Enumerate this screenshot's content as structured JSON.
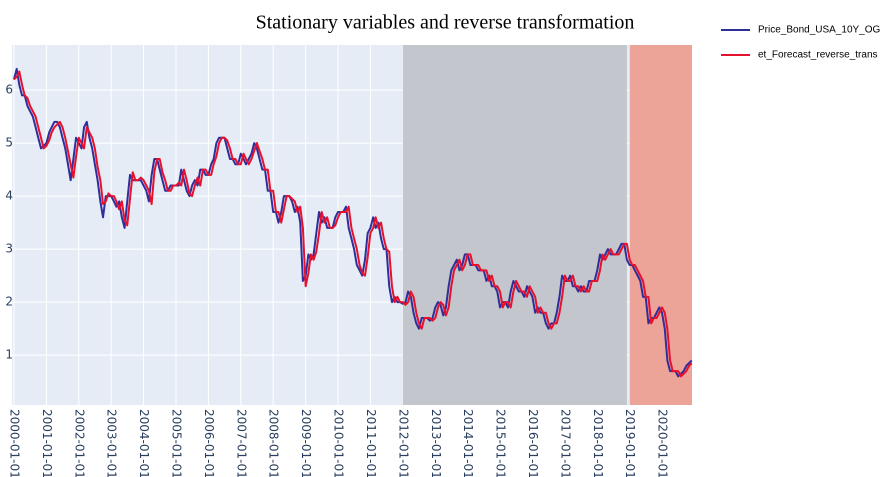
{
  "chart_data": {
    "type": "line",
    "title": "Stationary variables and reverse transformation",
    "xlim": [
      "1999-12-10",
      "2020-12-04"
    ],
    "ylim": [
      0.06,
      6.85
    ],
    "yticks": [
      1,
      2,
      3,
      4,
      5,
      6
    ],
    "xticks": [
      "2000-01-01",
      "2001-01-01",
      "2002-01-01",
      "2003-01-01",
      "2004-01-01",
      "2005-01-01",
      "2006-01-01",
      "2007-01-01",
      "2008-01-01",
      "2009-01-01",
      "2010-01-01",
      "2011-01-01",
      "2012-01-01",
      "2013-01-01",
      "2014-01-01",
      "2015-01-01",
      "2016-01-01",
      "2017-01-01",
      "2018-01-01",
      "2019-01-01",
      "2020-01-01"
    ],
    "grid": true,
    "background": "#e5ecf6",
    "shaded_regions": [
      {
        "start": "2012-01-01",
        "end": "2018-12-01",
        "color": "#c3c6cc"
      },
      {
        "start": "2019-01-01",
        "end": "2020-12-04",
        "color": "#eca398"
      }
    ],
    "x": [
      "2000-01-01",
      "2000-02-01",
      "2000-03-01",
      "2000-04-01",
      "2000-05-01",
      "2000-06-01",
      "2000-07-01",
      "2000-08-01",
      "2000-09-01",
      "2000-10-01",
      "2000-11-01",
      "2000-12-01",
      "2001-01-01",
      "2001-02-01",
      "2001-03-01",
      "2001-04-01",
      "2001-05-01",
      "2001-06-01",
      "2001-07-01",
      "2001-08-01",
      "2001-09-01",
      "2001-10-01",
      "2001-11-01",
      "2001-12-01",
      "2002-01-01",
      "2002-02-01",
      "2002-03-01",
      "2002-04-01",
      "2002-05-01",
      "2002-06-01",
      "2002-07-01",
      "2002-08-01",
      "2002-09-01",
      "2002-10-01",
      "2002-11-01",
      "2002-12-01",
      "2003-01-01",
      "2003-02-01",
      "2003-03-01",
      "2003-04-01",
      "2003-05-01",
      "2003-06-01",
      "2003-07-01",
      "2003-08-01",
      "2003-09-01",
      "2003-10-01",
      "2003-11-01",
      "2003-12-01",
      "2004-01-01",
      "2004-02-01",
      "2004-03-01",
      "2004-04-01",
      "2004-05-01",
      "2004-06-01",
      "2004-07-01",
      "2004-08-01",
      "2004-09-01",
      "2004-10-01",
      "2004-11-01",
      "2004-12-01",
      "2005-01-01",
      "2005-02-01",
      "2005-03-01",
      "2005-04-01",
      "2005-05-01",
      "2005-06-01",
      "2005-07-01",
      "2005-08-01",
      "2005-09-01",
      "2005-10-01",
      "2005-11-01",
      "2005-12-01",
      "2006-01-01",
      "2006-02-01",
      "2006-03-01",
      "2006-04-01",
      "2006-05-01",
      "2006-06-01",
      "2006-07-01",
      "2006-08-01",
      "2006-09-01",
      "2006-10-01",
      "2006-11-01",
      "2006-12-01",
      "2007-01-01",
      "2007-02-01",
      "2007-03-01",
      "2007-04-01",
      "2007-05-01",
      "2007-06-01",
      "2007-07-01",
      "2007-08-01",
      "2007-09-01",
      "2007-10-01",
      "2007-11-01",
      "2007-12-01",
      "2008-01-01",
      "2008-02-01",
      "2008-03-01",
      "2008-04-01",
      "2008-05-01",
      "2008-06-01",
      "2008-07-01",
      "2008-08-01",
      "2008-09-01",
      "2008-10-01",
      "2008-11-01",
      "2008-12-01",
      "2009-01-01",
      "2009-02-01",
      "2009-03-01",
      "2009-04-01",
      "2009-05-01",
      "2009-06-01",
      "2009-07-01",
      "2009-08-01",
      "2009-09-01",
      "2009-10-01",
      "2009-11-01",
      "2009-12-01",
      "2010-01-01",
      "2010-02-01",
      "2010-03-01",
      "2010-04-01",
      "2010-05-01",
      "2010-06-01",
      "2010-07-01",
      "2010-08-01",
      "2010-09-01",
      "2010-10-01",
      "2010-11-01",
      "2010-12-01",
      "2011-01-01",
      "2011-02-01",
      "2011-03-01",
      "2011-04-01",
      "2011-05-01",
      "2011-06-01",
      "2011-07-01",
      "2011-08-01",
      "2011-09-01",
      "2011-10-01",
      "2011-11-01",
      "2011-12-01",
      "2012-01-01",
      "2012-02-01",
      "2012-03-01",
      "2012-04-01",
      "2012-05-01",
      "2012-06-01",
      "2012-07-01",
      "2012-08-01",
      "2012-09-01",
      "2012-10-01",
      "2012-11-01",
      "2012-12-01",
      "2013-01-01",
      "2013-02-01",
      "2013-03-01",
      "2013-04-01",
      "2013-05-01",
      "2013-06-01",
      "2013-07-01",
      "2013-08-01",
      "2013-09-01",
      "2013-10-01",
      "2013-11-01",
      "2013-12-01",
      "2014-01-01",
      "2014-02-01",
      "2014-03-01",
      "2014-04-01",
      "2014-05-01",
      "2014-06-01",
      "2014-07-01",
      "2014-08-01",
      "2014-09-01",
      "2014-10-01",
      "2014-11-01",
      "2014-12-01",
      "2015-01-01",
      "2015-02-01",
      "2015-03-01",
      "2015-04-01",
      "2015-05-01",
      "2015-06-01",
      "2015-07-01",
      "2015-08-01",
      "2015-09-01",
      "2015-10-01",
      "2015-11-01",
      "2015-12-01",
      "2016-01-01",
      "2016-02-01",
      "2016-03-01",
      "2016-04-01",
      "2016-05-01",
      "2016-06-01",
      "2016-07-01",
      "2016-08-01",
      "2016-09-01",
      "2016-10-01",
      "2016-11-01",
      "2016-12-01",
      "2017-01-01",
      "2017-02-01",
      "2017-03-01",
      "2017-04-01",
      "2017-05-01",
      "2017-06-01",
      "2017-07-01",
      "2017-08-01",
      "2017-09-01",
      "2017-10-01",
      "2017-11-01",
      "2017-12-01",
      "2018-01-01",
      "2018-02-01",
      "2018-03-01",
      "2018-04-01",
      "2018-05-01",
      "2018-06-01",
      "2018-07-01",
      "2018-08-01",
      "2018-09-01",
      "2018-10-01",
      "2018-11-01",
      "2018-12-01",
      "2019-01-01",
      "2019-02-01",
      "2019-03-01",
      "2019-04-01",
      "2019-05-01",
      "2019-06-01",
      "2019-07-01",
      "2019-08-01",
      "2019-09-01",
      "2019-10-01",
      "2019-11-01",
      "2019-12-01",
      "2020-01-01",
      "2020-02-01",
      "2020-03-01",
      "2020-04-01",
      "2020-05-01",
      "2020-06-01",
      "2020-07-01",
      "2020-08-01",
      "2020-09-01",
      "2020-10-01",
      "2020-11-01",
      "2020-12-01"
    ],
    "series": [
      {
        "name": "Price_Bond_USA_10Y_OG",
        "color": "#2e2f9c",
        "values": [
          6.2,
          6.4,
          6.1,
          5.9,
          5.9,
          5.7,
          5.6,
          5.5,
          5.3,
          5.1,
          4.9,
          4.95,
          5.0,
          5.2,
          5.3,
          5.4,
          5.4,
          5.3,
          5.1,
          4.9,
          4.6,
          4.3,
          4.7,
          5.1,
          5.0,
          4.9,
          5.3,
          5.4,
          5.1,
          4.9,
          4.6,
          4.3,
          3.9,
          3.6,
          4.0,
          4.0,
          4.0,
          3.9,
          3.8,
          3.9,
          3.6,
          3.4,
          3.9,
          4.4,
          4.3,
          4.3,
          4.3,
          4.3,
          4.2,
          4.1,
          3.9,
          4.4,
          4.7,
          4.7,
          4.5,
          4.3,
          4.1,
          4.1,
          4.2,
          4.2,
          4.2,
          4.2,
          4.5,
          4.3,
          4.1,
          4.0,
          4.2,
          4.3,
          4.2,
          4.5,
          4.5,
          4.4,
          4.4,
          4.6,
          4.7,
          5.0,
          5.1,
          5.1,
          5.1,
          4.9,
          4.7,
          4.7,
          4.6,
          4.6,
          4.8,
          4.7,
          4.6,
          4.7,
          4.8,
          5.0,
          4.9,
          4.7,
          4.5,
          4.5,
          4.1,
          4.1,
          3.7,
          3.7,
          3.5,
          3.7,
          4.0,
          4.0,
          4.0,
          3.9,
          3.7,
          3.8,
          3.5,
          2.4,
          2.5,
          2.9,
          2.8,
          2.9,
          3.3,
          3.7,
          3.5,
          3.6,
          3.4,
          3.4,
          3.4,
          3.6,
          3.7,
          3.7,
          3.7,
          3.8,
          3.4,
          3.2,
          3.0,
          2.7,
          2.6,
          2.5,
          2.8,
          3.3,
          3.4,
          3.6,
          3.4,
          3.5,
          3.2,
          3.0,
          3.0,
          2.3,
          2.0,
          2.1,
          2.0,
          2.0,
          1.97,
          2.0,
          2.2,
          2.1,
          1.8,
          1.6,
          1.5,
          1.7,
          1.7,
          1.7,
          1.65,
          1.7,
          1.9,
          2.0,
          1.95,
          1.75,
          1.9,
          2.3,
          2.6,
          2.7,
          2.8,
          2.6,
          2.7,
          2.9,
          2.9,
          2.7,
          2.7,
          2.7,
          2.6,
          2.6,
          2.6,
          2.4,
          2.5,
          2.3,
          2.3,
          2.2,
          1.9,
          2.0,
          2.0,
          1.9,
          2.2,
          2.4,
          2.3,
          2.2,
          2.2,
          2.1,
          2.3,
          2.2,
          2.1,
          1.8,
          1.9,
          1.8,
          1.8,
          1.6,
          1.5,
          1.6,
          1.6,
          1.8,
          2.1,
          2.5,
          2.4,
          2.4,
          2.5,
          2.3,
          2.3,
          2.2,
          2.3,
          2.2,
          2.2,
          2.4,
          2.4,
          2.4,
          2.6,
          2.9,
          2.8,
          2.9,
          3.0,
          2.9,
          2.9,
          2.9,
          3.0,
          3.1,
          3.1,
          2.8,
          2.7,
          2.7,
          2.6,
          2.5,
          2.4,
          2.1,
          2.1,
          1.6,
          1.7,
          1.7,
          1.8,
          1.9,
          1.8,
          1.5,
          0.9,
          0.7,
          0.7,
          0.7,
          0.6,
          0.65,
          0.7,
          0.8,
          0.85,
          0.9
        ]
      },
      {
        "name": "et_Forecast_reverse_trans",
        "color": "#e8112d",
        "values": [
          6.2,
          6.25,
          6.35,
          6.1,
          5.9,
          5.85,
          5.7,
          5.6,
          5.5,
          5.3,
          5.1,
          4.9,
          4.95,
          5.05,
          5.2,
          5.3,
          5.35,
          5.4,
          5.3,
          5.1,
          4.85,
          4.6,
          4.35,
          4.75,
          5.1,
          5.0,
          4.9,
          5.3,
          5.2,
          5.1,
          4.9,
          4.55,
          4.3,
          3.85,
          3.9,
          4.05,
          4.0,
          4.0,
          3.9,
          3.75,
          3.9,
          3.55,
          3.45,
          3.95,
          4.45,
          4.3,
          4.3,
          4.35,
          4.3,
          4.2,
          4.1,
          3.85,
          4.45,
          4.7,
          4.7,
          4.45,
          4.3,
          4.1,
          4.1,
          4.2,
          4.2,
          4.25,
          4.2,
          4.5,
          4.3,
          4.05,
          4.0,
          4.2,
          4.35,
          4.2,
          4.5,
          4.5,
          4.4,
          4.4,
          4.6,
          4.75,
          5.0,
          5.1,
          5.1,
          5.05,
          4.9,
          4.7,
          4.7,
          4.6,
          4.6,
          4.8,
          4.7,
          4.6,
          4.7,
          4.85,
          5.0,
          4.85,
          4.7,
          4.5,
          4.5,
          4.1,
          4.1,
          3.7,
          3.7,
          3.5,
          3.75,
          4.0,
          4.0,
          3.95,
          3.9,
          3.7,
          3.8,
          3.4,
          2.3,
          2.55,
          2.9,
          2.8,
          2.95,
          3.3,
          3.7,
          3.5,
          3.6,
          3.4,
          3.4,
          3.45,
          3.6,
          3.7,
          3.7,
          3.7,
          3.8,
          3.4,
          3.2,
          3.0,
          2.7,
          2.55,
          2.5,
          2.85,
          3.3,
          3.4,
          3.6,
          3.4,
          3.5,
          3.2,
          3.0,
          2.95,
          2.3,
          2.0,
          2.1,
          2.0,
          2.0,
          1.95,
          2.0,
          2.2,
          2.1,
          1.8,
          1.6,
          1.5,
          1.7,
          1.7,
          1.7,
          1.65,
          1.7,
          1.9,
          2.0,
          1.95,
          1.75,
          1.9,
          2.3,
          2.6,
          2.7,
          2.8,
          2.6,
          2.7,
          2.9,
          2.9,
          2.7,
          2.7,
          2.7,
          2.6,
          2.6,
          2.6,
          2.4,
          2.5,
          2.3,
          2.3,
          2.2,
          1.9,
          2.0,
          2.0,
          1.9,
          2.2,
          2.4,
          2.3,
          2.2,
          2.2,
          2.1,
          2.3,
          2.2,
          2.1,
          1.8,
          1.9,
          1.8,
          1.8,
          1.6,
          1.5,
          1.6,
          1.6,
          1.8,
          2.1,
          2.5,
          2.4,
          2.4,
          2.5,
          2.3,
          2.3,
          2.2,
          2.3,
          2.2,
          2.2,
          2.4,
          2.4,
          2.4,
          2.6,
          2.9,
          2.8,
          2.9,
          3.0,
          2.9,
          2.9,
          2.9,
          3.0,
          3.1,
          3.1,
          2.8,
          2.7,
          2.7,
          2.6,
          2.5,
          2.4,
          2.1,
          2.1,
          1.6,
          1.7,
          1.7,
          1.8,
          1.9,
          1.8,
          1.5,
          0.9,
          0.7,
          0.7,
          0.7,
          0.6,
          0.65,
          0.7,
          0.8,
          0.85
        ]
      }
    ]
  }
}
